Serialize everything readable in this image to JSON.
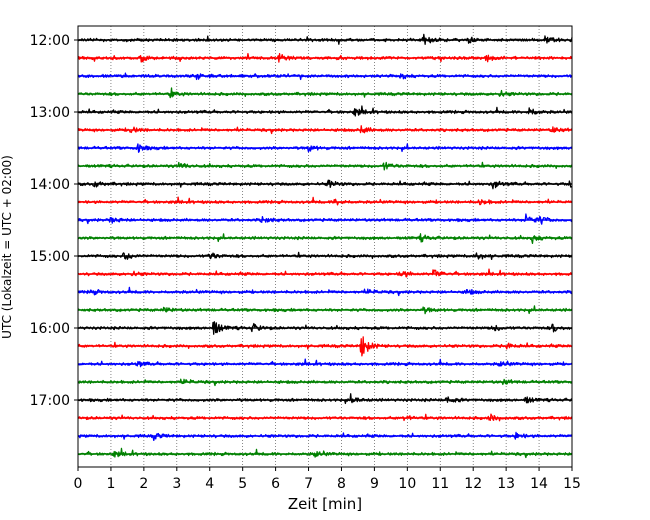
{
  "chart_data": {
    "type": "line",
    "title": "",
    "xlabel": "Zeit  [min]",
    "ylabel": "UTC (Lokalzeit = UTC + 02:00)",
    "xlim": [
      0,
      15
    ],
    "x_ticks": [
      "0",
      "1",
      "2",
      "3",
      "4",
      "5",
      "6",
      "7",
      "8",
      "9",
      "10",
      "11",
      "12",
      "13",
      "14",
      "15"
    ],
    "y_tick_labels": [
      "12:00",
      "13:00",
      "14:00",
      "15:00",
      "16:00",
      "17:00"
    ],
    "grid": "vertical dotted at each minute",
    "row_start_minutes_utc": [
      720,
      735,
      750,
      765,
      780,
      795,
      810,
      825,
      840,
      855,
      870,
      885,
      900,
      915,
      930,
      945,
      960,
      975,
      990,
      1005,
      1020,
      1035,
      1050,
      1065
    ],
    "series_colors": [
      "#000000",
      "#ff0000",
      "#0000ff",
      "#008000"
    ],
    "events": [
      {
        "row": 0,
        "x": 10.5,
        "amp": 0.35
      },
      {
        "row": 0,
        "x": 14.2,
        "amp": 0.35
      },
      {
        "row": 0,
        "x": 11.8,
        "amp": 0.25
      },
      {
        "row": 1,
        "x": 1.9,
        "amp": 0.3
      },
      {
        "row": 1,
        "x": 6.1,
        "amp": 0.3
      },
      {
        "row": 1,
        "x": 12.4,
        "amp": 0.25
      },
      {
        "row": 2,
        "x": 3.6,
        "amp": 0.25
      },
      {
        "row": 2,
        "x": 9.8,
        "amp": 0.2
      },
      {
        "row": 3,
        "x": 2.8,
        "amp": 0.25
      },
      {
        "row": 3,
        "x": 12.8,
        "amp": 0.25
      },
      {
        "row": 4,
        "x": 8.4,
        "amp": 0.3
      },
      {
        "row": 4,
        "x": 13.7,
        "amp": 0.35
      },
      {
        "row": 5,
        "x": 1.6,
        "amp": 0.25
      },
      {
        "row": 5,
        "x": 8.6,
        "amp": 0.3
      },
      {
        "row": 5,
        "x": 14.4,
        "amp": 0.25
      },
      {
        "row": 6,
        "x": 1.8,
        "amp": 0.35
      },
      {
        "row": 6,
        "x": 7.0,
        "amp": 0.25
      },
      {
        "row": 7,
        "x": 3.1,
        "amp": 0.25
      },
      {
        "row": 7,
        "x": 9.3,
        "amp": 0.3
      },
      {
        "row": 8,
        "x": 0.5,
        "amp": 0.25
      },
      {
        "row": 8,
        "x": 7.6,
        "amp": 0.3
      },
      {
        "row": 8,
        "x": 12.6,
        "amp": 0.35
      },
      {
        "row": 8,
        "x": 14.9,
        "amp": 0.3
      },
      {
        "row": 9,
        "x": 7.8,
        "amp": 0.25
      },
      {
        "row": 9,
        "x": 12.2,
        "amp": 0.25
      },
      {
        "row": 10,
        "x": 1.0,
        "amp": 0.25
      },
      {
        "row": 10,
        "x": 5.6,
        "amp": 0.25
      },
      {
        "row": 10,
        "x": 13.6,
        "amp": 0.5
      },
      {
        "row": 10,
        "x": 14.0,
        "amp": 0.3
      },
      {
        "row": 11,
        "x": 13.8,
        "amp": 0.35
      },
      {
        "row": 11,
        "x": 10.4,
        "amp": 0.25
      },
      {
        "row": 12,
        "x": 1.4,
        "amp": 0.35
      },
      {
        "row": 12,
        "x": 4.0,
        "amp": 0.3
      },
      {
        "row": 12,
        "x": 12.1,
        "amp": 0.3
      },
      {
        "row": 13,
        "x": 9.8,
        "amp": 0.35
      },
      {
        "row": 13,
        "x": 10.8,
        "amp": 0.4
      },
      {
        "row": 13,
        "x": 1.6,
        "amp": 0.2
      },
      {
        "row": 14,
        "x": 0.4,
        "amp": 0.2
      },
      {
        "row": 14,
        "x": 8.8,
        "amp": 0.2
      },
      {
        "row": 14,
        "x": 11.8,
        "amp": 0.2
      },
      {
        "row": 15,
        "x": 2.6,
        "amp": 0.2
      },
      {
        "row": 15,
        "x": 10.5,
        "amp": 0.25
      },
      {
        "row": 16,
        "x": 4.1,
        "amp": 0.7
      },
      {
        "row": 16,
        "x": 5.3,
        "amp": 0.35
      },
      {
        "row": 16,
        "x": 12.6,
        "amp": 0.25
      },
      {
        "row": 16,
        "x": 14.4,
        "amp": 0.3
      },
      {
        "row": 17,
        "x": 8.6,
        "amp": 1.0
      },
      {
        "row": 17,
        "x": 13.0,
        "amp": 0.25
      },
      {
        "row": 18,
        "x": 1.8,
        "amp": 0.2
      },
      {
        "row": 18,
        "x": 12.8,
        "amp": 0.2
      },
      {
        "row": 19,
        "x": 3.2,
        "amp": 0.2
      },
      {
        "row": 19,
        "x": 12.9,
        "amp": 0.2
      },
      {
        "row": 20,
        "x": 8.3,
        "amp": 0.3
      },
      {
        "row": 20,
        "x": 11.2,
        "amp": 0.3
      },
      {
        "row": 20,
        "x": 13.6,
        "amp": 0.25
      },
      {
        "row": 21,
        "x": 12.5,
        "amp": 0.3
      },
      {
        "row": 21,
        "x": 9.9,
        "amp": 0.2
      },
      {
        "row": 22,
        "x": 2.3,
        "amp": 0.25
      },
      {
        "row": 22,
        "x": 13.3,
        "amp": 0.25
      },
      {
        "row": 23,
        "x": 7.2,
        "amp": 0.25
      },
      {
        "row": 23,
        "x": 1.1,
        "amp": 0.2
      }
    ]
  }
}
